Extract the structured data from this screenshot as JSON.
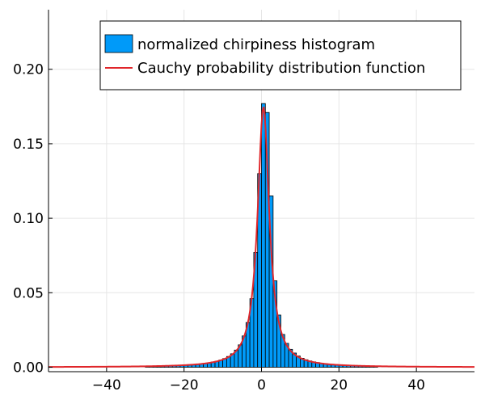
{
  "chart_data": {
    "type": "bar",
    "title": "",
    "xlabel": "",
    "ylabel": "",
    "xlim": [
      -55,
      55
    ],
    "ylim": [
      -0.003,
      0.24
    ],
    "grid": true,
    "legend_position": "top-right",
    "x_ticks": [
      {
        "value": -40,
        "label": "−40"
      },
      {
        "value": -20,
        "label": "−20"
      },
      {
        "value": 0,
        "label": "0"
      },
      {
        "value": 20,
        "label": "20"
      },
      {
        "value": 40,
        "label": "40"
      }
    ],
    "y_ticks": [
      {
        "value": 0.0,
        "label": "0.00"
      },
      {
        "value": 0.05,
        "label": "0.05"
      },
      {
        "value": 0.1,
        "label": "0.10"
      },
      {
        "value": 0.15,
        "label": "0.15"
      },
      {
        "value": 0.2,
        "label": "0.20"
      }
    ],
    "series": [
      {
        "name": "normalized chirpiness histogram",
        "kind": "histogram",
        "color": "#009af9",
        "bin_width": 1,
        "bins": [
          {
            "left": -30,
            "value": 0.0007
          },
          {
            "left": -29,
            "value": 0.0007
          },
          {
            "left": -28,
            "value": 0.0008
          },
          {
            "left": -27,
            "value": 0.0008
          },
          {
            "left": -26,
            "value": 0.0009
          },
          {
            "left": -25,
            "value": 0.001
          },
          {
            "left": -24,
            "value": 0.001
          },
          {
            "left": -23,
            "value": 0.0011
          },
          {
            "left": -22,
            "value": 0.0012
          },
          {
            "left": -21,
            "value": 0.0013
          },
          {
            "left": -20,
            "value": 0.0014
          },
          {
            "left": -19,
            "value": 0.0016
          },
          {
            "left": -18,
            "value": 0.0018
          },
          {
            "left": -17,
            "value": 0.002
          },
          {
            "left": -16,
            "value": 0.0023
          },
          {
            "left": -15,
            "value": 0.0026
          },
          {
            "left": -14,
            "value": 0.003
          },
          {
            "left": -13,
            "value": 0.0035
          },
          {
            "left": -12,
            "value": 0.004
          },
          {
            "left": -11,
            "value": 0.0048
          },
          {
            "left": -10,
            "value": 0.0058
          },
          {
            "left": -9,
            "value": 0.0072
          },
          {
            "left": -8,
            "value": 0.009
          },
          {
            "left": -7,
            "value": 0.0115
          },
          {
            "left": -6,
            "value": 0.015
          },
          {
            "left": -5,
            "value": 0.021
          },
          {
            "left": -4,
            "value": 0.03
          },
          {
            "left": -3,
            "value": 0.046
          },
          {
            "left": -2,
            "value": 0.077
          },
          {
            "left": -1,
            "value": 0.13
          },
          {
            "left": 0,
            "value": 0.177
          },
          {
            "left": 1,
            "value": 0.171
          },
          {
            "left": 2,
            "value": 0.115
          },
          {
            "left": 3,
            "value": 0.058
          },
          {
            "left": 4,
            "value": 0.035
          },
          {
            "left": 5,
            "value": 0.022
          },
          {
            "left": 6,
            "value": 0.016
          },
          {
            "left": 7,
            "value": 0.012
          },
          {
            "left": 8,
            "value": 0.0095
          },
          {
            "left": 9,
            "value": 0.0075
          },
          {
            "left": 10,
            "value": 0.006
          },
          {
            "left": 11,
            "value": 0.005
          },
          {
            "left": 12,
            "value": 0.0042
          },
          {
            "left": 13,
            "value": 0.0036
          },
          {
            "left": 14,
            "value": 0.0031
          },
          {
            "left": 15,
            "value": 0.0027
          },
          {
            "left": 16,
            "value": 0.0024
          },
          {
            "left": 17,
            "value": 0.0021
          },
          {
            "left": 18,
            "value": 0.0019
          },
          {
            "left": 19,
            "value": 0.0017
          },
          {
            "left": 20,
            "value": 0.0015
          },
          {
            "left": 21,
            "value": 0.0014
          },
          {
            "left": 22,
            "value": 0.0013
          },
          {
            "left": 23,
            "value": 0.0012
          },
          {
            "left": 24,
            "value": 0.0011
          },
          {
            "left": 25,
            "value": 0.001
          },
          {
            "left": 26,
            "value": 0.001
          },
          {
            "left": 27,
            "value": 0.0009
          },
          {
            "left": 28,
            "value": 0.0008
          },
          {
            "left": 29,
            "value": 0.0008
          }
        ]
      },
      {
        "name": "Cauchy probability distribution function",
        "kind": "line",
        "color": "#e0262a",
        "cauchy_location": 0.5,
        "cauchy_scale": 1.82,
        "x_range": [
          -55,
          55
        ],
        "samples": 400
      }
    ]
  }
}
